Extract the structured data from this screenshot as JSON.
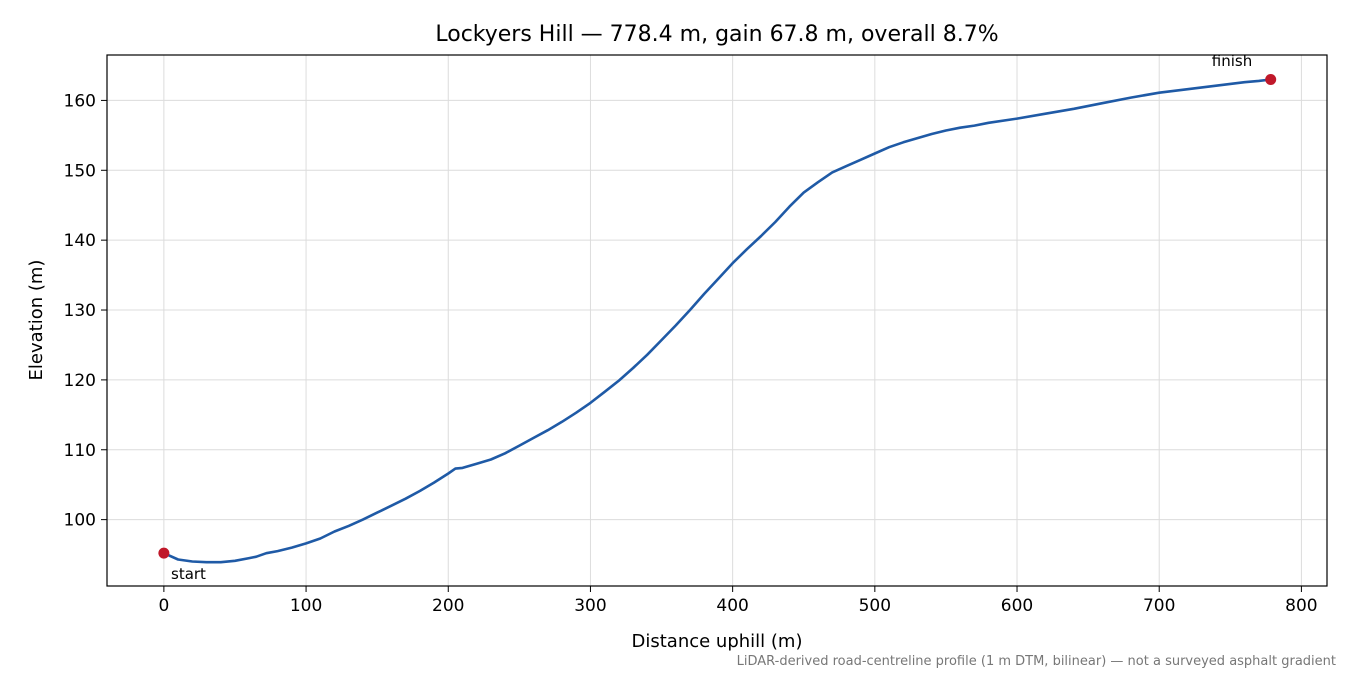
{
  "chart_data": {
    "type": "line",
    "title": "Lockyers Hill — 778.4 m, gain 67.8 m, overall 8.7%",
    "xlabel": "Distance uphill (m)",
    "ylabel": "Elevation (m)",
    "xlim": [
      -40,
      818
    ],
    "ylim": [
      90.5,
      166.5
    ],
    "x_ticks": [
      0,
      100,
      200,
      300,
      400,
      500,
      600,
      700,
      800
    ],
    "y_ticks": [
      100,
      110,
      120,
      130,
      140,
      150,
      160
    ],
    "grid": true,
    "line_color": "#1f5aa6",
    "marker_color": "#c0182a",
    "series": [
      {
        "x": [
          0,
          10,
          20,
          30,
          40,
          50,
          60,
          65,
          72,
          80,
          90,
          100,
          110,
          120,
          130,
          140,
          150,
          160,
          170,
          180,
          190,
          200,
          205,
          210,
          220,
          230,
          240,
          250,
          260,
          270,
          280,
          290,
          300,
          310,
          320,
          330,
          340,
          350,
          360,
          370,
          380,
          390,
          400,
          410,
          420,
          430,
          440,
          450,
          460,
          470,
          480,
          490,
          500,
          510,
          520,
          530,
          540,
          550,
          560,
          570,
          580,
          600,
          620,
          640,
          660,
          680,
          700,
          720,
          740,
          760,
          770,
          778.4
        ],
        "y": [
          95.2,
          94.3,
          94.0,
          93.9,
          93.9,
          94.1,
          94.5,
          94.7,
          95.2,
          95.5,
          96.0,
          96.6,
          97.3,
          98.3,
          99.1,
          100.0,
          101.0,
          102.0,
          103.0,
          104.1,
          105.3,
          106.6,
          107.3,
          107.4,
          108.0,
          108.6,
          109.5,
          110.6,
          111.7,
          112.8,
          114.0,
          115.3,
          116.7,
          118.3,
          119.9,
          121.7,
          123.6,
          125.7,
          127.8,
          130.0,
          132.3,
          134.5,
          136.7,
          138.7,
          140.6,
          142.6,
          144.8,
          146.8,
          148.3,
          149.7,
          150.6,
          151.5,
          152.4,
          153.3,
          154.0,
          154.6,
          155.2,
          155.7,
          156.1,
          156.4,
          156.8,
          157.4,
          158.1,
          158.8,
          159.6,
          160.4,
          161.1,
          161.6,
          162.1,
          162.6,
          162.8,
          163.0
        ]
      }
    ],
    "annotations": [
      {
        "text": "start",
        "x": 0,
        "y": 95.2
      },
      {
        "text": "finish",
        "x": 778.4,
        "y": 163.0
      }
    ],
    "footnote": "LiDAR-derived road-centreline profile (1 m DTM, bilinear) — not a surveyed asphalt gradient"
  }
}
